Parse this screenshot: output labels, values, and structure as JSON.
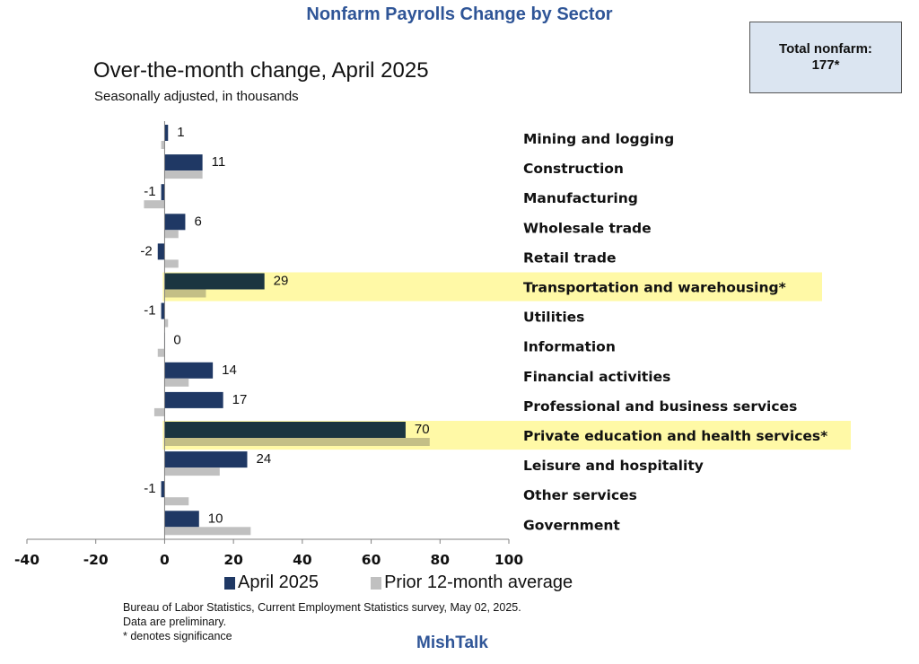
{
  "header": {
    "title": "Nonfarm Payrolls Change by Sector",
    "total_label": "Total nonfarm:",
    "total_value": "177*"
  },
  "footer": {
    "source_lines": [
      "Bureau of Labor Statistics, Current Employment Statistics survey, May 02, 2025.",
      "Data are preliminary.",
      "* denotes significance"
    ],
    "brand": "MishTalk"
  },
  "colors": {
    "april": "#1f3864",
    "april_highlight": "#1b3540",
    "prior": "#c0c0c0",
    "prior_highlight": "#c4bf86",
    "highlight": "#fff9a6",
    "title_blue": "#2f5597",
    "box_fill": "#dbe5f1"
  },
  "chart_data": {
    "type": "bar",
    "orientation": "horizontal",
    "title": "Over-the-month change, April 2025",
    "subtitle": "Seasonally adjusted, in thousands",
    "xlabel": "",
    "ylabel": "",
    "xlim": [
      -40,
      100
    ],
    "x_ticks": [
      -40,
      -20,
      0,
      20,
      40,
      60,
      80,
      100
    ],
    "legend_position": "bottom",
    "grid": false,
    "categories": [
      "Mining and logging",
      "Construction",
      "Manufacturing",
      "Wholesale trade",
      "Retail trade",
      "Transportation and warehousing*",
      "Utilities",
      "Information",
      "Financial activities",
      "Professional and business services",
      "Private education and health services*",
      "Leisure and hospitality",
      "Other services",
      "Government"
    ],
    "highlighted": [
      false,
      false,
      false,
      false,
      false,
      true,
      false,
      false,
      false,
      false,
      true,
      false,
      false,
      false
    ],
    "series": [
      {
        "name": "April 2025",
        "values": [
          1,
          11,
          -1,
          6,
          -2,
          29,
          -1,
          0,
          14,
          17,
          70,
          24,
          -1,
          10
        ],
        "labeled": true
      },
      {
        "name": "Prior 12-month average",
        "values": [
          -1,
          11,
          -6,
          4,
          4,
          12,
          1,
          -2,
          7,
          -3,
          77,
          16,
          7,
          25
        ],
        "labeled": false
      }
    ]
  }
}
